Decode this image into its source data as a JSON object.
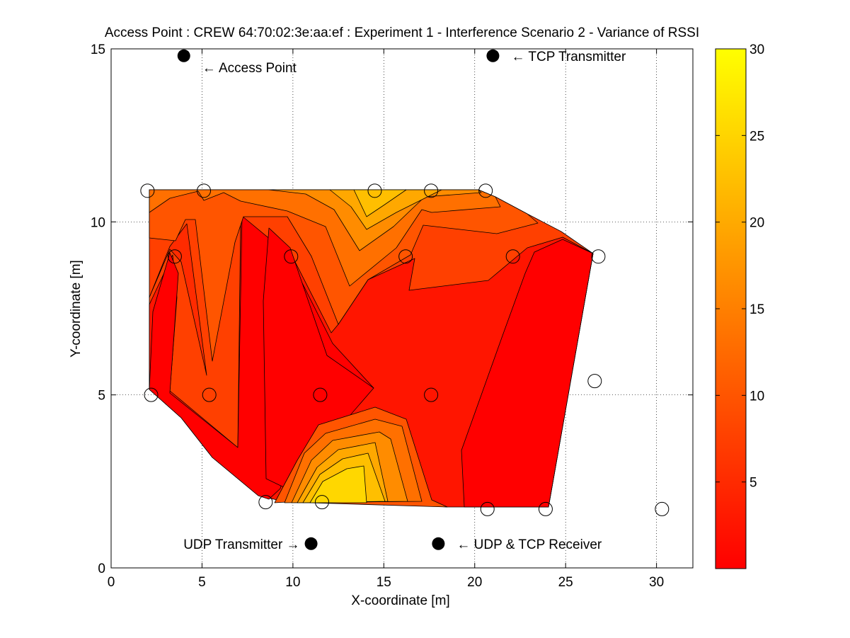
{
  "chart_data": {
    "type": "contour",
    "title": "Access Point : CREW 64:70:02:3e:aa:ef : Experiment 1 - Interference Scenario 2 - Variance of RSSI",
    "xlabel": "X-coordinate [m]",
    "ylabel": "Y-coordinate [m]",
    "xlim": [
      0,
      32
    ],
    "ylim": [
      0,
      15
    ],
    "xticks": [
      0,
      5,
      10,
      15,
      20,
      25,
      30
    ],
    "yticks": [
      0,
      5,
      10,
      15
    ],
    "grid": true,
    "grid_style": "dotted",
    "colorbar": {
      "colormap": "autumn",
      "colors": [
        "#ff0000",
        "#ffff00"
      ],
      "range": [
        0,
        30
      ],
      "ticks": [
        5,
        10,
        15,
        20,
        25,
        30
      ]
    },
    "contour_levels": [
      {
        "level": "0-2.5",
        "color": "#ff0000"
      },
      {
        "level": "2.5-5",
        "color": "#ff1500"
      },
      {
        "level": "5-7.5",
        "color": "#ff2b00"
      },
      {
        "level": "7.5-10",
        "color": "#ff4000"
      },
      {
        "level": "10-12.5",
        "color": "#ff5500"
      },
      {
        "level": "12.5-15",
        "color": "#ff7000"
      },
      {
        "level": "15-17.5",
        "color": "#ff8c00"
      },
      {
        "level": "17.5-20",
        "color": "#ffa800"
      },
      {
        "level": "20-22.5",
        "color": "#ffbf00"
      },
      {
        "level": "22.5-25",
        "color": "#ffd700"
      },
      {
        "level": "25-27.5",
        "color": "#ffea00"
      }
    ],
    "measurement_points": [
      {
        "x": 2.0,
        "y": 10.9
      },
      {
        "x": 5.1,
        "y": 10.9
      },
      {
        "x": 14.5,
        "y": 10.9
      },
      {
        "x": 17.6,
        "y": 10.9
      },
      {
        "x": 20.6,
        "y": 10.9
      },
      {
        "x": 3.5,
        "y": 9.0
      },
      {
        "x": 9.9,
        "y": 9.0
      },
      {
        "x": 16.2,
        "y": 9.0
      },
      {
        "x": 22.1,
        "y": 9.0
      },
      {
        "x": 26.8,
        "y": 9.0
      },
      {
        "x": 2.2,
        "y": 5.0
      },
      {
        "x": 5.4,
        "y": 5.0
      },
      {
        "x": 11.5,
        "y": 5.0
      },
      {
        "x": 17.6,
        "y": 5.0
      },
      {
        "x": 26.6,
        "y": 5.4
      },
      {
        "x": 8.5,
        "y": 1.9
      },
      {
        "x": 11.6,
        "y": 1.9
      },
      {
        "x": 20.7,
        "y": 1.7
      },
      {
        "x": 23.9,
        "y": 1.7
      },
      {
        "x": 30.3,
        "y": 1.7
      }
    ],
    "nodes": [
      {
        "name": "Access Point",
        "x": 4.0,
        "y": 14.8,
        "label": "← Access Point"
      },
      {
        "name": "TCP Transmitter",
        "x": 21.0,
        "y": 14.8,
        "label": "← TCP Transmitter"
      },
      {
        "name": "UDP Transmitter",
        "x": 11.0,
        "y": 0.7,
        "label": "UDP Transmitter →"
      },
      {
        "name": "UDP & TCP Receiver",
        "x": 18.0,
        "y": 0.7,
        "label": "← UDP & TCP Receiver"
      }
    ]
  }
}
